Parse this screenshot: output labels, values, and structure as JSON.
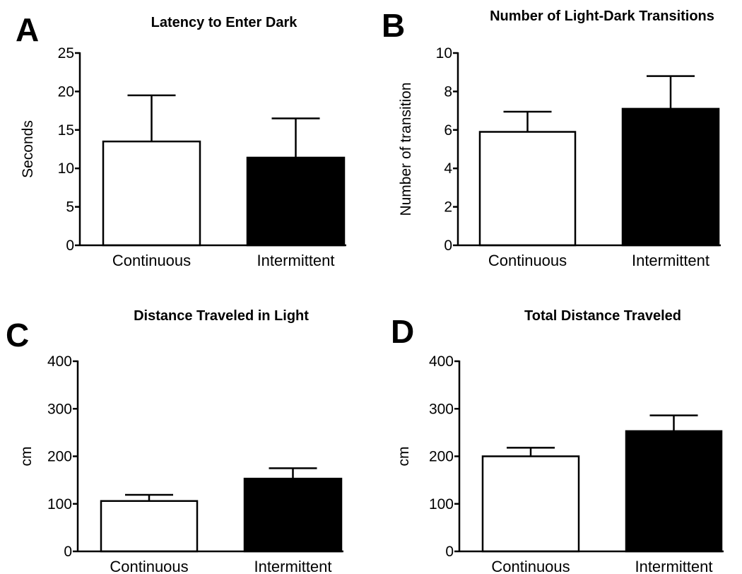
{
  "chart_data": [
    {
      "type": "bar",
      "panel": "A",
      "title": "Latency to Enter Dark",
      "ylabel": "Seconds",
      "xlabel": "",
      "categories": [
        "Continuous",
        "Intermittent"
      ],
      "values": [
        13.5,
        11.4
      ],
      "errors": [
        6.0,
        5.1
      ],
      "bar_colors": [
        "#ffffff",
        "#000000"
      ],
      "ylim": [
        0,
        25
      ],
      "yticks": [
        0,
        5,
        10,
        15,
        20,
        25
      ],
      "ytick_labels": [
        "0",
        "5",
        "10",
        "15",
        "20",
        "25"
      ]
    },
    {
      "type": "bar",
      "panel": "B",
      "title": "Number of Light-Dark Transitions",
      "ylabel": "Number of transition",
      "xlabel": "",
      "categories": [
        "Continuous",
        "Intermittent"
      ],
      "values": [
        5.9,
        7.1
      ],
      "errors": [
        1.05,
        1.7
      ],
      "bar_colors": [
        "#ffffff",
        "#000000"
      ],
      "ylim": [
        0,
        10
      ],
      "yticks": [
        0,
        2,
        4,
        6,
        8,
        10
      ],
      "ytick_labels": [
        "0",
        "2",
        "4",
        "6",
        "8",
        "10"
      ]
    },
    {
      "type": "bar",
      "panel": "C",
      "title": "Distance Traveled in Light",
      "ylabel": "cm",
      "xlabel": "",
      "categories": [
        "Continuous",
        "Intermittent"
      ],
      "values": [
        106,
        153
      ],
      "errors": [
        13,
        22
      ],
      "bar_colors": [
        "#ffffff",
        "#000000"
      ],
      "ylim": [
        0,
        400
      ],
      "yticks": [
        0,
        100,
        200,
        300,
        400
      ],
      "ytick_labels": [
        "0",
        "100",
        "200",
        "300",
        "400"
      ]
    },
    {
      "type": "bar",
      "panel": "D",
      "title": "Total Distance Traveled",
      "ylabel": "cm",
      "xlabel": "",
      "categories": [
        "Continuous",
        "Intermittent"
      ],
      "values": [
        200,
        253
      ],
      "errors": [
        18,
        33
      ],
      "bar_colors": [
        "#ffffff",
        "#000000"
      ],
      "ylim": [
        0,
        400
      ],
      "yticks": [
        0,
        100,
        200,
        300,
        400
      ],
      "ytick_labels": [
        "0",
        "100",
        "200",
        "300",
        "400"
      ]
    }
  ]
}
